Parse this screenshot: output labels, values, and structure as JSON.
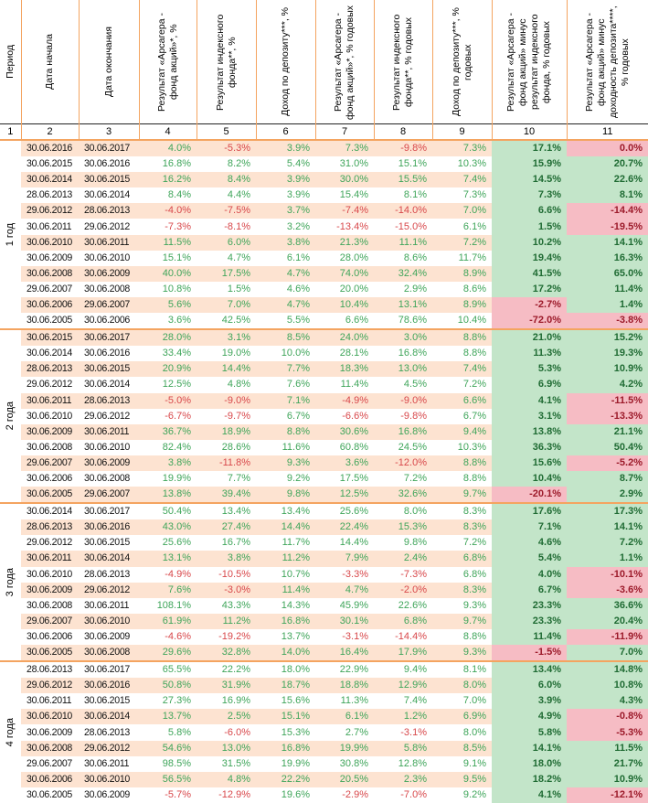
{
  "headers": [
    "Период",
    "Дата начала",
    "Дата окончания",
    "Результат «Арсагера - фонд акций»*, %",
    "Результат индексного фонда**, %",
    "Доход по депозиту***, %",
    "Результат «Арсагера - фонд акций»*, % годовых",
    "Результат индексного фонда**, % годовых",
    "Доход по депозиту***, % годовых",
    "Результат «Арсагера - фонд акций» минус результат индексного фонда, % годовых",
    "Результат «Арсагера - фонд акций» минус доходность депозита****, % годовых"
  ],
  "column_numbers": [
    "1",
    "2",
    "3",
    "4",
    "5",
    "6",
    "7",
    "8",
    "9",
    "10",
    "11"
  ],
  "colors": {
    "accent_line": "#f4a460",
    "row_alt": "#fde3d1",
    "positive_text": "#3fa55a",
    "negative_text": "#d8474a",
    "positive_fill": "#c3e5c9",
    "negative_fill": "#f6bcc4"
  },
  "groups": [
    {
      "label": "1 год",
      "rows": [
        [
          "30.06.2016",
          "30.06.2017",
          "4.0%",
          "-5.3%",
          "3.9%",
          "7.3%",
          "-9.8%",
          "7.3%",
          "17.1%",
          "0.0%"
        ],
        [
          "30.06.2015",
          "30.06.2016",
          "16.8%",
          "8.2%",
          "5.4%",
          "31.0%",
          "15.1%",
          "10.3%",
          "15.9%",
          "20.7%"
        ],
        [
          "30.06.2014",
          "30.06.2015",
          "16.2%",
          "8.4%",
          "3.9%",
          "30.0%",
          "15.5%",
          "7.4%",
          "14.5%",
          "22.6%"
        ],
        [
          "28.06.2013",
          "30.06.2014",
          "8.4%",
          "4.4%",
          "3.9%",
          "15.4%",
          "8.1%",
          "7.3%",
          "7.3%",
          "8.1%"
        ],
        [
          "29.06.2012",
          "28.06.2013",
          "-4.0%",
          "-7.5%",
          "3.7%",
          "-7.4%",
          "-14.0%",
          "7.0%",
          "6.6%",
          "-14.4%"
        ],
        [
          "30.06.2011",
          "29.06.2012",
          "-7.3%",
          "-8.1%",
          "3.2%",
          "-13.4%",
          "-15.0%",
          "6.1%",
          "1.5%",
          "-19.5%"
        ],
        [
          "30.06.2010",
          "30.06.2011",
          "11.5%",
          "6.0%",
          "3.8%",
          "21.3%",
          "11.1%",
          "7.2%",
          "10.2%",
          "14.1%"
        ],
        [
          "30.06.2009",
          "30.06.2010",
          "15.1%",
          "4.7%",
          "6.1%",
          "28.0%",
          "8.6%",
          "11.7%",
          "19.4%",
          "16.3%"
        ],
        [
          "30.06.2008",
          "30.06.2009",
          "40.0%",
          "17.5%",
          "4.7%",
          "74.0%",
          "32.4%",
          "8.9%",
          "41.5%",
          "65.0%"
        ],
        [
          "29.06.2007",
          "30.06.2008",
          "10.8%",
          "1.5%",
          "4.6%",
          "20.0%",
          "2.9%",
          "8.6%",
          "17.2%",
          "11.4%"
        ],
        [
          "30.06.2006",
          "29.06.2007",
          "5.6%",
          "7.0%",
          "4.7%",
          "10.4%",
          "13.1%",
          "8.9%",
          "-2.7%",
          "1.4%"
        ],
        [
          "30.06.2005",
          "30.06.2006",
          "3.6%",
          "42.5%",
          "5.5%",
          "6.6%",
          "78.6%",
          "10.4%",
          "-72.0%",
          "-3.8%"
        ]
      ]
    },
    {
      "label": "2 года",
      "rows": [
        [
          "30.06.2015",
          "30.06.2017",
          "28.0%",
          "3.1%",
          "8.5%",
          "24.0%",
          "3.0%",
          "8.8%",
          "21.0%",
          "15.2%"
        ],
        [
          "30.06.2014",
          "30.06.2016",
          "33.4%",
          "19.0%",
          "10.0%",
          "28.1%",
          "16.8%",
          "8.8%",
          "11.3%",
          "19.3%"
        ],
        [
          "28.06.2013",
          "30.06.2015",
          "20.9%",
          "14.4%",
          "7.7%",
          "18.3%",
          "13.0%",
          "7.4%",
          "5.3%",
          "10.9%"
        ],
        [
          "29.06.2012",
          "30.06.2014",
          "12.5%",
          "4.8%",
          "7.6%",
          "11.4%",
          "4.5%",
          "7.2%",
          "6.9%",
          "4.2%"
        ],
        [
          "30.06.2011",
          "28.06.2013",
          "-5.0%",
          "-9.0%",
          "7.1%",
          "-4.9%",
          "-9.0%",
          "6.6%",
          "4.1%",
          "-11.5%"
        ],
        [
          "30.06.2010",
          "29.06.2012",
          "-6.7%",
          "-9.7%",
          "6.7%",
          "-6.6%",
          "-9.8%",
          "6.7%",
          "3.1%",
          "-13.3%"
        ],
        [
          "30.06.2009",
          "30.06.2011",
          "36.7%",
          "18.9%",
          "8.8%",
          "30.6%",
          "16.8%",
          "9.4%",
          "13.8%",
          "21.1%"
        ],
        [
          "30.06.2008",
          "30.06.2010",
          "82.4%",
          "28.6%",
          "11.6%",
          "60.8%",
          "24.5%",
          "10.3%",
          "36.3%",
          "50.4%"
        ],
        [
          "29.06.2007",
          "30.06.2009",
          "3.8%",
          "-11.8%",
          "9.3%",
          "3.6%",
          "-12.0%",
          "8.8%",
          "15.6%",
          "-5.2%"
        ],
        [
          "30.06.2006",
          "30.06.2008",
          "19.9%",
          "7.7%",
          "9.2%",
          "17.5%",
          "7.2%",
          "8.8%",
          "10.4%",
          "8.7%"
        ],
        [
          "30.06.2005",
          "29.06.2007",
          "13.8%",
          "39.4%",
          "9.8%",
          "12.5%",
          "32.6%",
          "9.7%",
          "-20.1%",
          "2.9%"
        ]
      ]
    },
    {
      "label": "3 года",
      "rows": [
        [
          "30.06.2014",
          "30.06.2017",
          "50.4%",
          "13.4%",
          "13.4%",
          "25.6%",
          "8.0%",
          "8.3%",
          "17.6%",
          "17.3%"
        ],
        [
          "28.06.2013",
          "30.06.2016",
          "43.0%",
          "27.4%",
          "14.4%",
          "22.4%",
          "15.3%",
          "8.3%",
          "7.1%",
          "14.1%"
        ],
        [
          "29.06.2012",
          "30.06.2015",
          "25.6%",
          "16.7%",
          "11.7%",
          "14.4%",
          "9.8%",
          "7.2%",
          "4.6%",
          "7.2%"
        ],
        [
          "30.06.2011",
          "30.06.2014",
          "13.1%",
          "3.8%",
          "11.2%",
          "7.9%",
          "2.4%",
          "6.8%",
          "5.4%",
          "1.1%"
        ],
        [
          "30.06.2010",
          "28.06.2013",
          "-4.9%",
          "-10.5%",
          "10.7%",
          "-3.3%",
          "-7.3%",
          "6.8%",
          "4.0%",
          "-10.1%"
        ],
        [
          "30.06.2009",
          "29.06.2012",
          "7.6%",
          "-3.0%",
          "11.4%",
          "4.7%",
          "-2.0%",
          "8.3%",
          "6.7%",
          "-3.6%"
        ],
        [
          "30.06.2008",
          "30.06.2011",
          "108.1%",
          "43.3%",
          "14.3%",
          "45.9%",
          "22.6%",
          "9.3%",
          "23.3%",
          "36.6%"
        ],
        [
          "29.06.2007",
          "30.06.2010",
          "61.9%",
          "11.2%",
          "16.8%",
          "30.1%",
          "6.8%",
          "9.7%",
          "23.3%",
          "20.4%"
        ],
        [
          "30.06.2006",
          "30.06.2009",
          "-4.6%",
          "-19.2%",
          "13.7%",
          "-3.1%",
          "-14.4%",
          "8.8%",
          "11.4%",
          "-11.9%"
        ],
        [
          "30.06.2005",
          "30.06.2008",
          "29.6%",
          "32.8%",
          "14.0%",
          "16.4%",
          "17.9%",
          "9.3%",
          "-1.5%",
          "7.0%"
        ]
      ]
    },
    {
      "label": "4 года",
      "rows": [
        [
          "28.06.2013",
          "30.06.2017",
          "65.5%",
          "22.2%",
          "18.0%",
          "22.9%",
          "9.4%",
          "8.1%",
          "13.4%",
          "14.8%"
        ],
        [
          "29.06.2012",
          "30.06.2016",
          "50.8%",
          "31.9%",
          "18.7%",
          "18.8%",
          "12.9%",
          "8.0%",
          "6.0%",
          "10.8%"
        ],
        [
          "30.06.2011",
          "30.06.2015",
          "27.3%",
          "16.9%",
          "15.6%",
          "11.3%",
          "7.4%",
          "7.0%",
          "3.9%",
          "4.3%"
        ],
        [
          "30.06.2010",
          "30.06.2014",
          "13.7%",
          "2.5%",
          "15.1%",
          "6.1%",
          "1.2%",
          "6.9%",
          "4.9%",
          "-0.8%"
        ],
        [
          "30.06.2009",
          "28.06.2013",
          "5.8%",
          "-6.0%",
          "15.3%",
          "2.7%",
          "-3.1%",
          "8.0%",
          "5.8%",
          "-5.3%"
        ],
        [
          "30.06.2008",
          "29.06.2012",
          "54.6%",
          "13.0%",
          "16.8%",
          "19.9%",
          "5.8%",
          "8.5%",
          "14.1%",
          "11.5%"
        ],
        [
          "29.06.2007",
          "30.06.2011",
          "98.5%",
          "31.5%",
          "19.9%",
          "30.8%",
          "12.8%",
          "9.1%",
          "18.0%",
          "21.7%"
        ],
        [
          "30.06.2006",
          "30.06.2010",
          "56.5%",
          "4.8%",
          "22.2%",
          "20.5%",
          "2.3%",
          "9.5%",
          "18.2%",
          "10.9%"
        ],
        [
          "30.06.2005",
          "30.06.2009",
          "-5.7%",
          "-12.9%",
          "19.6%",
          "-2.9%",
          "-7.0%",
          "9.2%",
          "4.1%",
          "-12.1%"
        ]
      ]
    }
  ]
}
